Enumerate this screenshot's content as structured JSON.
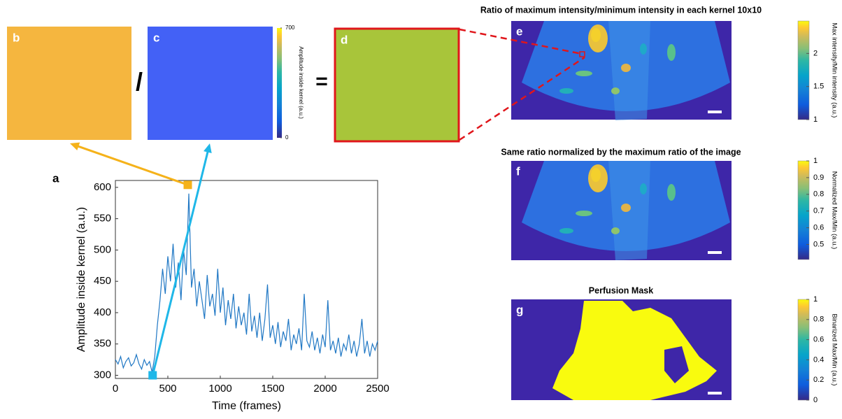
{
  "chart_data": {
    "type": "line",
    "panel_label": "a",
    "xlabel": "Time (frames)",
    "ylabel": "Amplitude inside kernel (a.u.)",
    "xlim": [
      0,
      2500
    ],
    "ylim": [
      295,
      611
    ],
    "xticks": [
      0,
      500,
      1000,
      1500,
      2000,
      2500
    ],
    "yticks": [
      300,
      350,
      400,
      450,
      500,
      550,
      600
    ],
    "color": "#1f77c4",
    "x": [
      0,
      25,
      50,
      75,
      100,
      125,
      150,
      175,
      200,
      225,
      250,
      275,
      300,
      325,
      350,
      375,
      400,
      425,
      450,
      475,
      500,
      525,
      550,
      575,
      600,
      625,
      650,
      675,
      700,
      725,
      750,
      775,
      800,
      825,
      850,
      875,
      900,
      925,
      950,
      975,
      1000,
      1025,
      1050,
      1075,
      1100,
      1125,
      1150,
      1175,
      1200,
      1225,
      1250,
      1275,
      1300,
      1325,
      1350,
      1375,
      1400,
      1425,
      1450,
      1475,
      1500,
      1525,
      1550,
      1575,
      1600,
      1625,
      1650,
      1675,
      1700,
      1725,
      1750,
      1775,
      1800,
      1825,
      1850,
      1875,
      1900,
      1925,
      1950,
      1975,
      2000,
      2025,
      2050,
      2075,
      2100,
      2125,
      2150,
      2175,
      2200,
      2225,
      2250,
      2275,
      2300,
      2325,
      2350,
      2375,
      2400,
      2425,
      2450,
      2475,
      2500
    ],
    "values": [
      325,
      318,
      330,
      312,
      322,
      328,
      315,
      320,
      333,
      318,
      310,
      325,
      316,
      322,
      305,
      330,
      380,
      420,
      470,
      430,
      490,
      450,
      510,
      440,
      480,
      420,
      500,
      460,
      590,
      440,
      470,
      410,
      450,
      420,
      390,
      460,
      410,
      430,
      395,
      470,
      400,
      440,
      380,
      420,
      390,
      430,
      375,
      410,
      380,
      400,
      365,
      430,
      370,
      395,
      360,
      400,
      355,
      390,
      445,
      360,
      380,
      350,
      385,
      345,
      370,
      355,
      390,
      340,
      365,
      350,
      375,
      340,
      430,
      355,
      345,
      370,
      340,
      360,
      335,
      365,
      345,
      420,
      340,
      355,
      335,
      360,
      330,
      350,
      340,
      365,
      335,
      355,
      330,
      350,
      390,
      335,
      355,
      330,
      350,
      340,
      355
    ],
    "highlights": [
      {
        "x": 690,
        "y": 604,
        "color": "#f5b21a",
        "target": "b"
      },
      {
        "x": 355,
        "y": 300,
        "color": "#1fb7e8",
        "target": "c"
      }
    ]
  },
  "panels": [
    {
      "label": "b",
      "color": "#f5b63f"
    },
    {
      "label": "c",
      "color": "#4361f6",
      "colorbar": {
        "label": "Amplitude inside kernel (a.u.)",
        "clim": [
          0,
          700
        ],
        "ticks": [
          0,
          700
        ]
      }
    },
    {
      "label": "d",
      "color": "#a8c53a"
    }
  ],
  "operators": {
    "divide": "/",
    "equals": "="
  },
  "images": [
    {
      "label": "e",
      "title": "Ratio of maximum intensity/minimum intensity in each kernel 10x10",
      "colorbar": {
        "label": "Max intensity/Min intensity (a.u.)",
        "clim": [
          1,
          2.49
        ],
        "ticks": [
          1,
          1.5,
          2
        ]
      }
    },
    {
      "label": "f",
      "title": "Same ratio normalized by the maximum ratio of the image",
      "colorbar": {
        "label": "Normalized Max/Min (a.u.)",
        "clim": [
          0.41,
          1
        ],
        "ticks": [
          0.5,
          0.6,
          0.7,
          0.8,
          0.9,
          1
        ]
      }
    },
    {
      "label": "g",
      "title": "Perfusion Mask",
      "colorbar": {
        "label": "Binarized Max/Min (a.u.)",
        "clim": [
          0,
          1
        ],
        "ticks": [
          0,
          0.2,
          0.4,
          0.6,
          0.8,
          1
        ]
      }
    }
  ]
}
